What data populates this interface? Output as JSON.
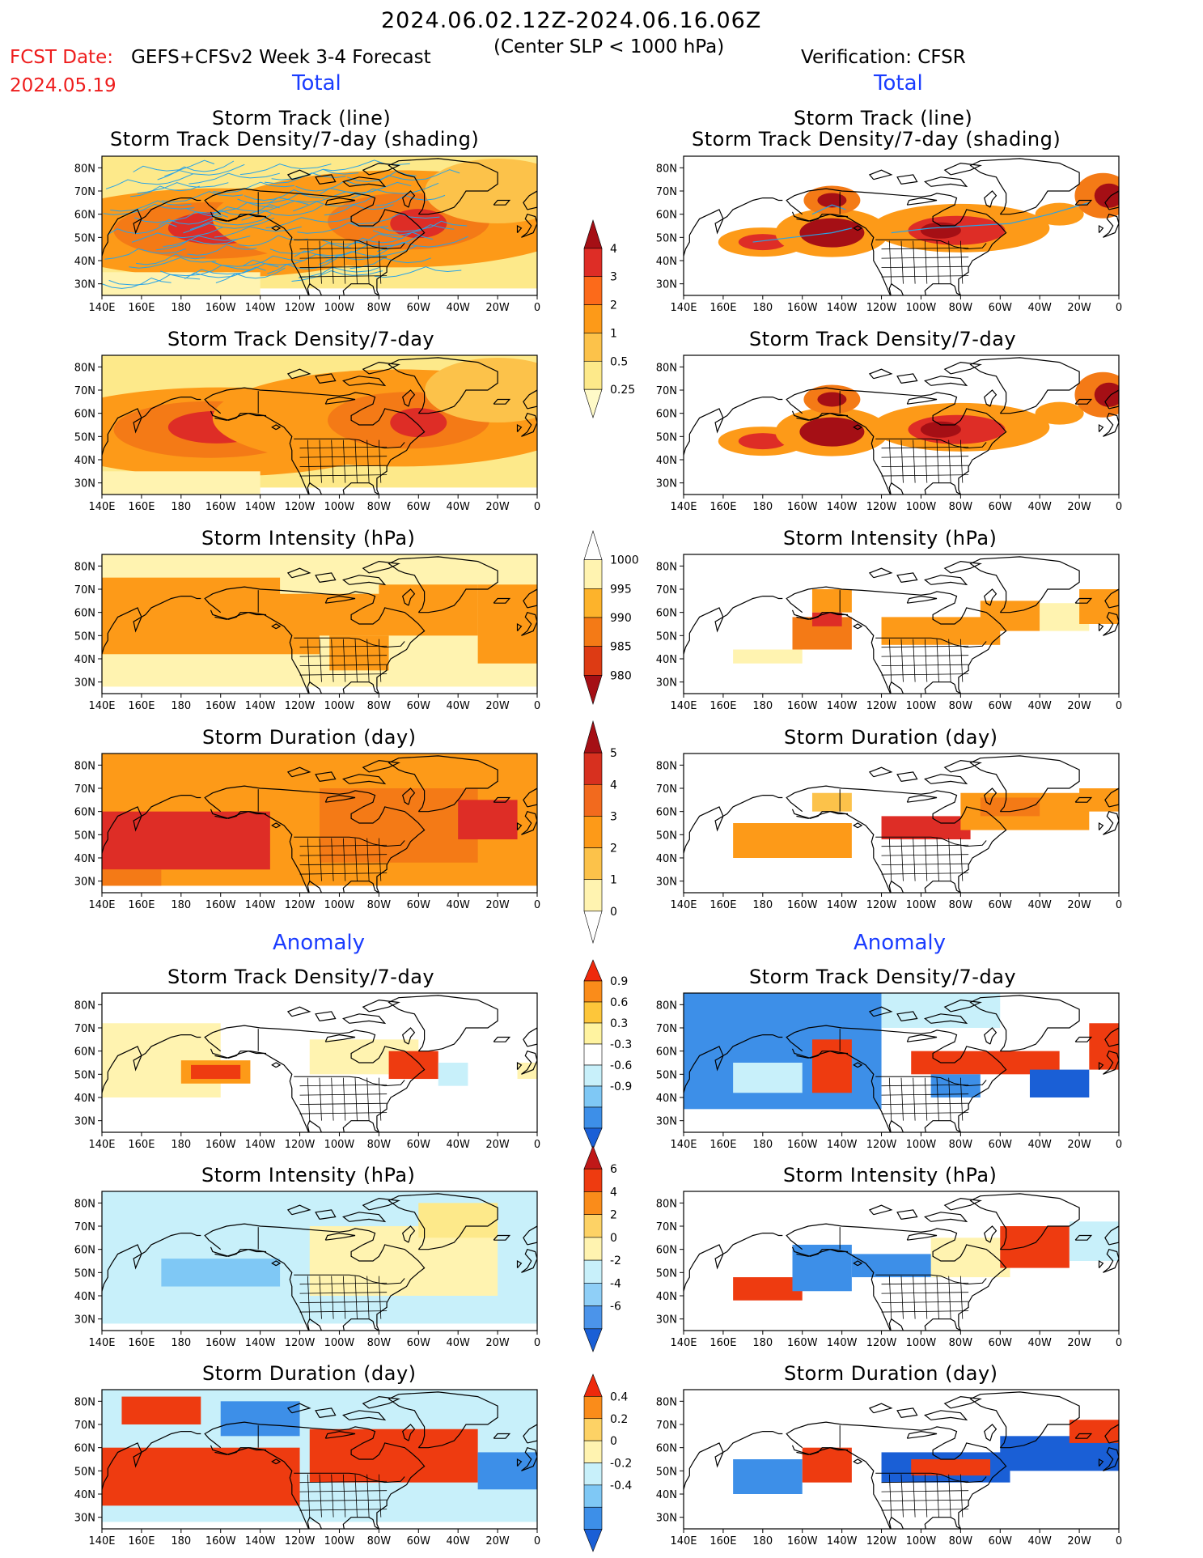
{
  "header": {
    "date_range": "2024.06.02.12Z-2024.06.16.06Z",
    "condition": "(Center SLP < 1000 hPa)",
    "fcst_date_label": "FCST Date:",
    "fcst_date": "2024.05.19",
    "forecast_label": "GEFS+CFSv2 Week 3-4 Forecast",
    "verification_label": "Verification: CFSR"
  },
  "sections": {
    "total": "Total",
    "anomaly": "Anomaly"
  },
  "panel_titles": {
    "track_line": "Storm Track (line)",
    "track_shading": "Storm Track Density/7-day (shading)",
    "density": "Storm Track Density/7-day",
    "intensity": "Storm Intensity (hPa)",
    "duration": "Storm Duration (day)"
  },
  "axes": {
    "lat_ticks": [
      "80N",
      "70N",
      "60N",
      "50N",
      "40N",
      "30N"
    ],
    "lon_ticks": [
      "140E",
      "160E",
      "180",
      "160W",
      "140W",
      "120W",
      "100W",
      "80W",
      "60W",
      "40W",
      "20W",
      "0"
    ]
  },
  "colorbars": {
    "density": {
      "labels": [
        "4",
        "3",
        "2",
        "1",
        "0.5",
        "0.25"
      ],
      "colors": [
        "#a50f15",
        "#de2d26",
        "#fc6a1a",
        "#fd9a18",
        "#fcc24a",
        "#fde98a",
        "#fffac8"
      ]
    },
    "intensity": {
      "labels": [
        "1000",
        "995",
        "990",
        "985",
        "980"
      ],
      "colors": [
        "#ffffff",
        "#fff3b0",
        "#fdb32b",
        "#f47a16",
        "#dd3b14",
        "#a50f15"
      ]
    },
    "duration": {
      "labels": [
        "5",
        "4",
        "3",
        "2",
        "1",
        "0"
      ],
      "colors": [
        "#a50f15",
        "#d7301f",
        "#f26a1e",
        "#fd9a18",
        "#fcc24a",
        "#fff3b0",
        "#ffffff"
      ]
    },
    "anom_density": {
      "labels": [
        "0.9",
        "0.6",
        "0.3",
        "-0.3",
        "-0.6",
        "-0.9"
      ],
      "colors": [
        "#ee2a0c",
        "#fa8c1a",
        "#fdc63a",
        "#fff3a0",
        "#ffffff",
        "#c8f0fa",
        "#7fc8f5",
        "#3d8fe8",
        "#1a5fd6"
      ]
    },
    "anom_intensity": {
      "labels": [
        "6",
        "4",
        "2",
        "0",
        "-2",
        "-4",
        "-6"
      ],
      "colors": [
        "#c01818",
        "#ee3b10",
        "#fa8c1a",
        "#fdd265",
        "#fff3b0",
        "#c8f0fa",
        "#8fcff7",
        "#4b94ea",
        "#1a5fd6"
      ]
    },
    "anom_duration": {
      "labels": [
        "0.4",
        "0.2",
        "0",
        "-0.2",
        "-0.4"
      ],
      "colors": [
        "#ee2a0c",
        "#fa8c1a",
        "#fdd265",
        "#fff3b0",
        "#c8f0fa",
        "#7fc8f5",
        "#3d8fe8",
        "#1a5fd6"
      ]
    }
  },
  "palette": {
    "coast": "#000000",
    "track_line": "#29a3e6",
    "sec_blue": "#1a3cff",
    "fcst_red": "#ee1c1c"
  }
}
